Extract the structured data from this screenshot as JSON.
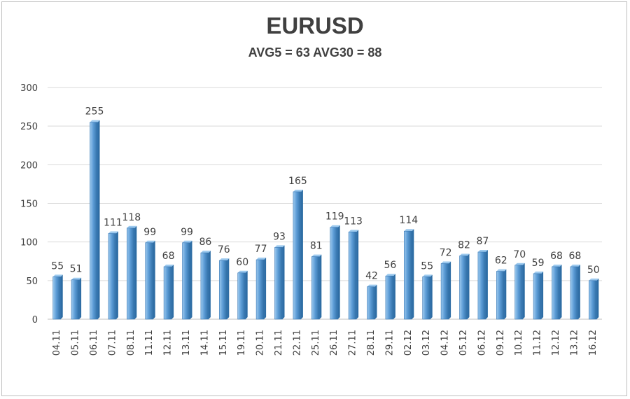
{
  "chart_data": {
    "type": "bar",
    "title": "EURUSD",
    "subtitle": "AVG5 = 63 AVG30 = 88",
    "categories": [
      "04.11",
      "05.11",
      "06.11",
      "07.11",
      "08.11",
      "11.11",
      "12.11",
      "13.11",
      "14.11",
      "15.11",
      "19.11",
      "20.11",
      "21.11",
      "22.11",
      "25.11",
      "26.11",
      "27.11",
      "28.11",
      "29.11",
      "02.12",
      "03.12",
      "04.12",
      "05.12",
      "06.12",
      "09.12",
      "10.12",
      "11.12",
      "12.12",
      "13.12",
      "16.12"
    ],
    "values": [
      55,
      51,
      255,
      111,
      118,
      99,
      68,
      99,
      86,
      76,
      60,
      77,
      93,
      165,
      81,
      119,
      113,
      42,
      56,
      114,
      55,
      72,
      82,
      87,
      62,
      70,
      59,
      68,
      68,
      50
    ],
    "ylim": [
      0,
      300
    ],
    "yticks": [
      0,
      50,
      100,
      150,
      200,
      250,
      300
    ],
    "grid": true,
    "legend": "none",
    "colors": {
      "bar_light": "#9cc9ee",
      "bar_mid": "#5b9bd5",
      "bar_dark": "#2e6da4",
      "grid": "#d9d9d9",
      "text": "#404040"
    }
  }
}
